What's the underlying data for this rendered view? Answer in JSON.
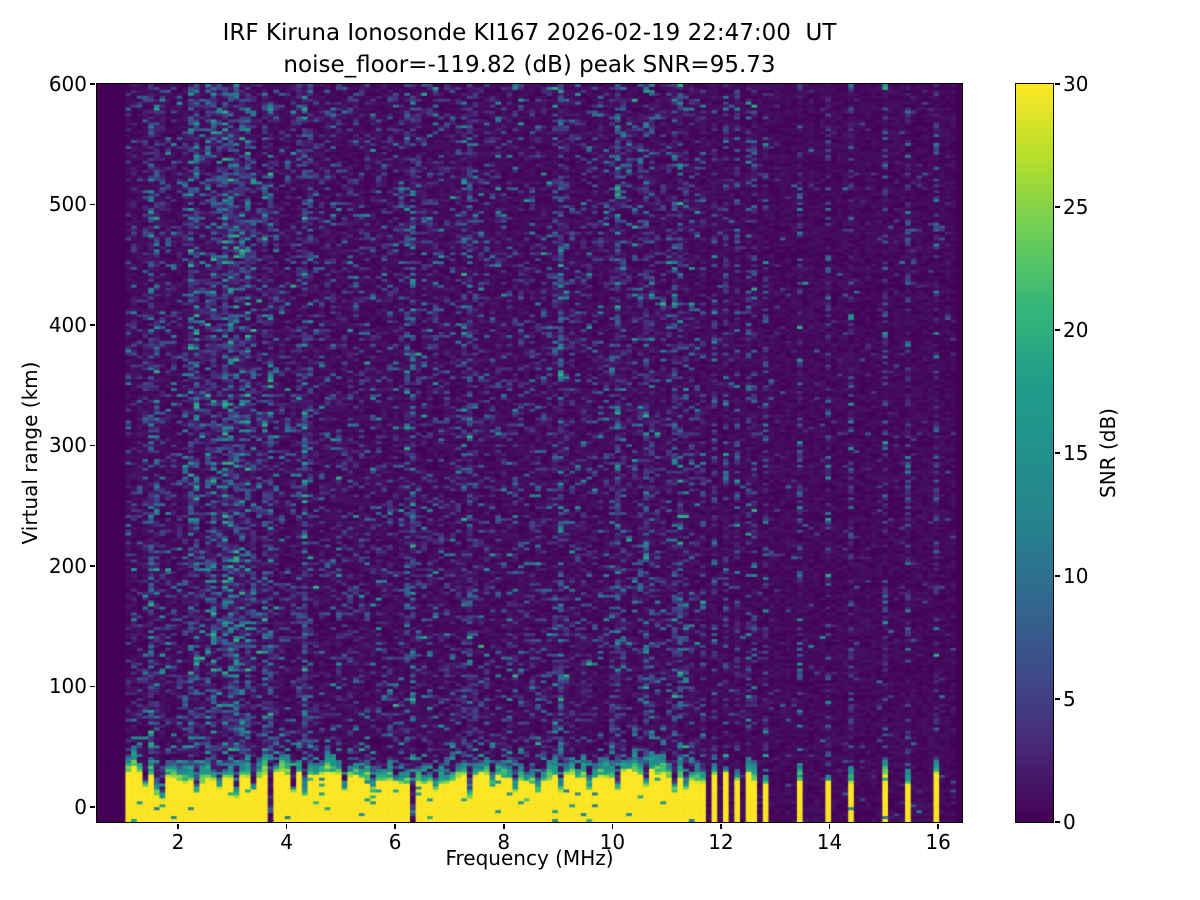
{
  "chart_data": {
    "type": "heatmap",
    "title": "IRF Kiruna Ionosonde KI167 2026-02-19 22:47:00  UT",
    "subtitle": "noise_floor=-119.82 (dB) peak SNR=95.73",
    "station": "IRF Kiruna Ionosonde KI167",
    "timestamp_ut": "2026-02-19 22:47:00 UT",
    "noise_floor_db": -119.82,
    "peak_snr_db": 95.73,
    "xlabel": "Frequency (MHz)",
    "ylabel": "Virtual range (km)",
    "colorbar_label": "SNR (dB)",
    "colormap": "viridis",
    "clim": [
      0,
      30
    ],
    "xlim": [
      0.508,
      16.44
    ],
    "ylim": [
      -12.5,
      600
    ],
    "xticks": [
      2,
      4,
      6,
      8,
      10,
      12,
      14,
      16
    ],
    "yticks": [
      0,
      100,
      200,
      300,
      400,
      500,
      600
    ],
    "colorbar_ticks": [
      0,
      5,
      10,
      15,
      20,
      25,
      30
    ],
    "grid": false,
    "features": {
      "background": "dark purple ~0-2 dB with sparse blue/teal speckle noise (horizontal dashes)",
      "ground_clutter_band": {
        "freq_mhz": [
          1.0,
          11.61
        ],
        "range_km": [
          -12.5,
          30
        ],
        "snr_db": 30,
        "note": "saturated yellow band, wavy teal/green transition up to ~50 km, narrow dark vertical notches"
      },
      "discrete_stripe_freqs_mhz": [
        11.67,
        11.88,
        12.07,
        12.3,
        12.48,
        12.66,
        12.87,
        13.42,
        13.95,
        14.43,
        14.99,
        15.43,
        15.94
      ],
      "noise_streak_freqs_mhz": [
        2.3,
        2.62,
        2.88,
        3.08,
        3.3
      ],
      "right_region": "above 11.61 MHz sounding only at discrete frequencies: narrow yellow stripes at bottom with teal caps and full-height speckle columns"
    },
    "render": {
      "seed": 167167,
      "ncols": 152,
      "nrows": 250,
      "data_fmin": 1.0,
      "data_fmax": 16.3,
      "clutter_fmax": 11.61,
      "stripes": [
        11.67,
        11.88,
        12.07,
        12.3,
        12.48,
        12.66,
        12.87,
        13.42,
        13.95,
        14.43,
        14.99,
        15.43,
        15.94
      ],
      "notches": [
        {
          "f": 1.38,
          "d": 0.5
        },
        {
          "f": 1.56,
          "d": 0.7
        },
        {
          "f": 1.67,
          "d": 0.9
        },
        {
          "f": 2.31,
          "d": 0.6
        },
        {
          "f": 2.81,
          "d": 0.5
        },
        {
          "f": 3.05,
          "d": 0.75
        },
        {
          "f": 3.36,
          "d": 0.5
        },
        {
          "f": 3.66,
          "d": 1.0
        },
        {
          "f": 4.12,
          "d": 0.6
        },
        {
          "f": 4.35,
          "d": 0.8
        },
        {
          "f": 5.05,
          "d": 0.6
        },
        {
          "f": 5.6,
          "d": 0.5
        },
        {
          "f": 6.31,
          "d": 0.95
        },
        {
          "f": 6.75,
          "d": 0.5
        },
        {
          "f": 7.35,
          "d": 0.85
        },
        {
          "f": 7.8,
          "d": 0.4
        },
        {
          "f": 8.2,
          "d": 0.55
        },
        {
          "f": 8.65,
          "d": 0.4
        },
        {
          "f": 9.05,
          "d": 0.6
        },
        {
          "f": 9.6,
          "d": 0.45
        },
        {
          "f": 10.15,
          "d": 0.55
        },
        {
          "f": 10.65,
          "d": 0.5
        },
        {
          "f": 11.1,
          "d": 0.6
        },
        {
          "f": 11.35,
          "d": 0.5
        }
      ],
      "streaks": [
        {
          "f": 1.55,
          "s": 1.5
        },
        {
          "f": 2.3,
          "s": 2.0
        },
        {
          "f": 2.62,
          "s": 1.8
        },
        {
          "f": 2.88,
          "s": 2.8
        },
        {
          "f": 3.08,
          "s": 2.2
        },
        {
          "f": 3.3,
          "s": 1.8
        },
        {
          "f": 3.66,
          "s": 1.4
        },
        {
          "f": 4.35,
          "s": 1.3
        },
        {
          "f": 6.31,
          "s": 1.3
        },
        {
          "f": 7.35,
          "s": 1.25
        },
        {
          "f": 9.05,
          "s": 1.2
        },
        {
          "f": 10.1,
          "s": 1.4
        },
        {
          "f": 10.65,
          "s": 1.25
        },
        {
          "f": 11.2,
          "s": 1.2
        }
      ],
      "viridis_stops": [
        [
          0.0,
          68,
          1,
          84
        ],
        [
          0.1,
          72,
          40,
          120
        ],
        [
          0.2,
          62,
          74,
          137
        ],
        [
          0.3,
          49,
          104,
          142
        ],
        [
          0.4,
          38,
          130,
          142
        ],
        [
          0.5,
          33,
          145,
          140
        ],
        [
          0.6,
          31,
          158,
          137
        ],
        [
          0.7,
          53,
          183,
          121
        ],
        [
          0.8,
          110,
          206,
          88
        ],
        [
          0.9,
          181,
          222,
          43
        ],
        [
          1.0,
          253,
          231,
          37
        ]
      ]
    },
    "colors": {
      "background_min": "#440154",
      "max": "#fde725",
      "figure_bg": "#ffffff",
      "text": "#000000"
    }
  }
}
